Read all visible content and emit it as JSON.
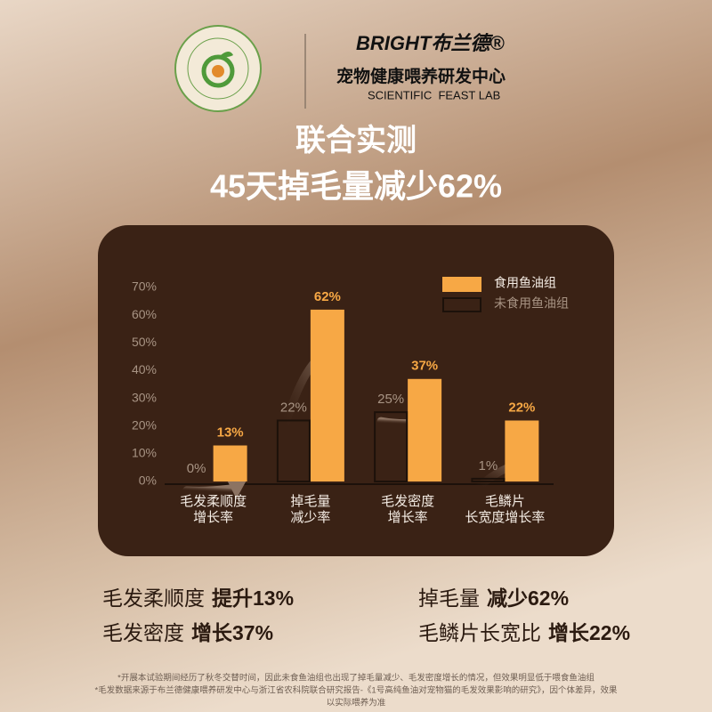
{
  "header": {
    "brand": "BRIGHT布兰德®",
    "lab_name": "宠物健康喂养研发中心",
    "lab_name_en": "SCIENTIFIC  FEAST LAB"
  },
  "chart_data": {
    "type": "bar",
    "title": [
      "联合实测",
      "45天掉毛量减少62%"
    ],
    "categories": [
      [
        "毛发柔顺度",
        "增长率"
      ],
      [
        "掉毛量",
        "减少率"
      ],
      [
        "毛发密度",
        "增长率"
      ],
      [
        "毛鳞片",
        "长宽度增长率"
      ]
    ],
    "series": [
      {
        "name": "食用鱼油组",
        "color": "#f7a845",
        "values": [
          13,
          62,
          37,
          22
        ],
        "value_labels": [
          "13%",
          "62%",
          "37%",
          "22%"
        ]
      },
      {
        "name": "未食用鱼油组",
        "color": "#1c110a",
        "outline": true,
        "values": [
          0,
          22,
          25,
          1
        ],
        "value_labels": [
          "0%",
          "22%",
          "25%",
          "1%"
        ]
      }
    ],
    "ylim": [
      0,
      70
    ],
    "yticks": [
      {
        "value": 0,
        "label": "0%"
      },
      {
        "value": 10,
        "label": "10%"
      },
      {
        "value": 20,
        "label": "20%"
      },
      {
        "value": 30,
        "label": "30%"
      },
      {
        "value": 40,
        "label": "40%"
      },
      {
        "value": 50,
        "label": "50%"
      },
      {
        "value": 60,
        "label": "60%"
      },
      {
        "value": 70,
        "label": "70%"
      }
    ],
    "legend": "top-right"
  },
  "summary": [
    {
      "label": "毛发柔顺度",
      "value": "提升13%"
    },
    {
      "label": "掉毛量",
      "value": "减少62%"
    },
    {
      "label": "毛发密度",
      "value": "增长37%"
    },
    {
      "label": "毛鳞片长宽比",
      "value": "增长22%"
    }
  ],
  "footnotes": [
    "*开展本试验期间经历了秋冬交替时间，因此未食鱼油组也出现了掉毛量减少、毛发密度增长的情况，但效果明显低于喂食鱼油组",
    "*毛发数据来源于布兰德健康喂养研发中心与浙江省农科院联合研究报告-《1号高纯鱼油对宠物猫的毛发效果影响的研究》，因个体差异，效果",
    "以实际喂养为准"
  ]
}
